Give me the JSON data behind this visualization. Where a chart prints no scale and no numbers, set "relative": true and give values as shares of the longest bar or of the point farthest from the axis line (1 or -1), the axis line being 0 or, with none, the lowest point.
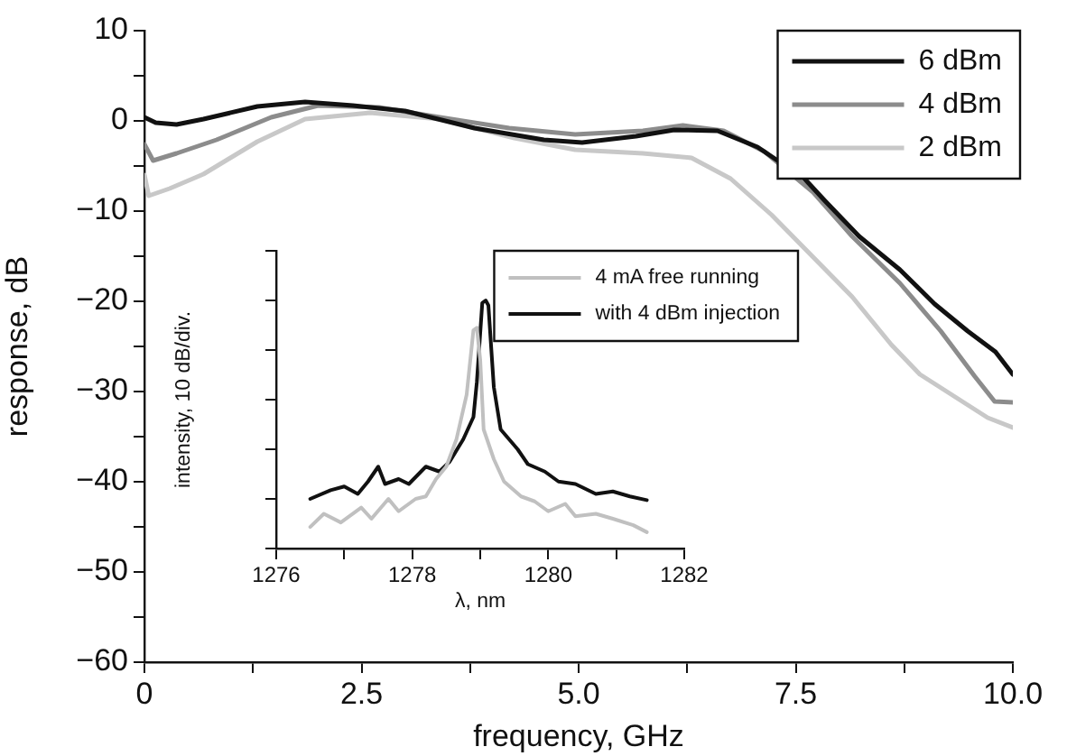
{
  "chart_data": [
    {
      "type": "line",
      "xlabel": "frequency, GHz",
      "ylabel": "response, dB",
      "xlim": [
        0,
        10
      ],
      "ylim": [
        -60,
        10
      ],
      "xticks": [
        0,
        {
          "value": 1.25,
          "label": null
        },
        2.5,
        {
          "value": 3.75,
          "label": null
        },
        {
          "value": 5,
          "label": "5.0"
        },
        {
          "value": 6.25,
          "label": null
        },
        7.5,
        {
          "value": 8.75,
          "label": null
        },
        {
          "value": 10,
          "label": "10.0"
        }
      ],
      "yticks": [
        {
          "value": -60,
          "label": "−60"
        },
        {
          "value": -55,
          "label": null
        },
        {
          "value": -50,
          "label": "−50"
        },
        {
          "value": -45,
          "label": null
        },
        {
          "value": -40,
          "label": "−40"
        },
        {
          "value": -35,
          "label": null
        },
        {
          "value": -30,
          "label": "−30"
        },
        {
          "value": -25,
          "label": null
        },
        {
          "value": -20,
          "label": "−20"
        },
        {
          "value": -15,
          "label": null
        },
        {
          "value": -10,
          "label": "−10"
        },
        {
          "value": -5,
          "label": null
        },
        0,
        {
          "value": 5,
          "label": null
        },
        10
      ],
      "legend": "top right",
      "grid": false,
      "marker": "none",
      "line_style": "solid",
      "series": [
        {
          "name": "6 dBm",
          "color": "#111111",
          "x": [
            0,
            0.13,
            0.37,
            0.68,
            1.3,
            1.85,
            2.4,
            3.0,
            3.8,
            4.6,
            5.04,
            5.66,
            6.1,
            6.6,
            7.06,
            7.6,
            7.84,
            8.23,
            8.7,
            9.1,
            9.48,
            9.8,
            10
          ],
          "values": [
            0.4,
            -0.2,
            -0.4,
            0.2,
            1.6,
            2.1,
            1.7,
            1.1,
            -0.8,
            -2.1,
            -2.4,
            -1.7,
            -1.0,
            -1.1,
            -2.9,
            -6.4,
            -8.9,
            -12.8,
            -16.5,
            -20.3,
            -23.3,
            -25.6,
            -28.1
          ]
        },
        {
          "name": "4 dBm",
          "color": "#8c8c8c",
          "x": [
            0,
            0.1,
            0.37,
            0.83,
            1.46,
            2.0,
            2.7,
            3.4,
            4.2,
            4.96,
            5.74,
            6.2,
            6.67,
            7.14,
            7.7,
            8.15,
            8.7,
            9.17,
            9.56,
            9.79,
            10
          ],
          "values": [
            -2.6,
            -4.4,
            -3.6,
            -2.1,
            0.4,
            1.7,
            1.5,
            0.4,
            -0.8,
            -1.5,
            -1.1,
            -0.5,
            -1.1,
            -3.4,
            -7.9,
            -12.8,
            -18,
            -23.3,
            -28.3,
            -31.1,
            -31.2
          ]
        },
        {
          "name": "2 dBm",
          "color": "#c8c8c8",
          "x": [
            0,
            0.05,
            0.29,
            0.68,
            1.3,
            1.85,
            2.6,
            3.4,
            4.26,
            4.96,
            5.74,
            6.3,
            6.75,
            7.22,
            7.69,
            8.15,
            8.6,
            8.93,
            9.71,
            10
          ],
          "values": [
            -6.0,
            -8.3,
            -7.5,
            -5.9,
            -2.3,
            0.2,
            0.9,
            0.2,
            -1.9,
            -3.2,
            -3.6,
            -4.1,
            -6.4,
            -10.4,
            -15,
            -19.5,
            -24.8,
            -28.1,
            -32.9,
            -34
          ]
        }
      ]
    },
    {
      "type": "line",
      "xlabel": "λ, nm",
      "ylabel": "intensity, 10 dB/div.",
      "xlim": [
        1276,
        1282
      ],
      "xticks": [
        1276,
        {
          "value": 1277,
          "label": null
        },
        1278,
        {
          "value": 1279,
          "label": null
        },
        1280,
        {
          "value": 1281,
          "label": null
        },
        1282
      ],
      "relative": true,
      "legend": "top right",
      "grid": false,
      "marker": "none",
      "line_style": "solid",
      "series": [
        {
          "name": "4 mA free running",
          "color": "#c0c0c0",
          "x": [
            1276.5,
            1276.7,
            1276.95,
            1277.25,
            1277.4,
            1277.65,
            1277.8,
            1278.05,
            1278.2,
            1278.35,
            1278.5,
            1278.65,
            1278.8,
            1278.9,
            1278.95,
            1279.0,
            1279.05,
            1279.2,
            1279.35,
            1279.6,
            1279.8,
            1280.0,
            1280.25,
            1280.4,
            1280.7,
            1280.95,
            1281.25,
            1281.45
          ],
          "values": [
            0.087,
            0.14,
            0.105,
            0.165,
            0.12,
            0.2,
            0.15,
            0.2,
            0.21,
            0.28,
            0.33,
            0.44,
            0.62,
            0.88,
            0.89,
            0.76,
            0.48,
            0.36,
            0.27,
            0.21,
            0.19,
            0.15,
            0.18,
            0.13,
            0.14,
            0.12,
            0.094,
            0.066
          ]
        },
        {
          "name": "with 4 dBm injection",
          "color": "#111111",
          "x": [
            1276.5,
            1276.8,
            1277.0,
            1277.2,
            1277.35,
            1277.5,
            1277.6,
            1277.8,
            1277.95,
            1278.2,
            1278.4,
            1278.55,
            1278.75,
            1278.9,
            1278.95,
            1279.03,
            1279.08,
            1279.12,
            1279.2,
            1279.3,
            1279.55,
            1279.7,
            1279.95,
            1280.15,
            1280.4,
            1280.7,
            1280.95,
            1281.2,
            1281.45
          ],
          "values": [
            0.2,
            0.235,
            0.25,
            0.22,
            0.27,
            0.33,
            0.26,
            0.28,
            0.26,
            0.33,
            0.31,
            0.35,
            0.44,
            0.53,
            0.67,
            0.99,
            1.0,
            0.98,
            0.65,
            0.48,
            0.4,
            0.34,
            0.31,
            0.27,
            0.26,
            0.22,
            0.23,
            0.21,
            0.195
          ]
        }
      ]
    }
  ]
}
